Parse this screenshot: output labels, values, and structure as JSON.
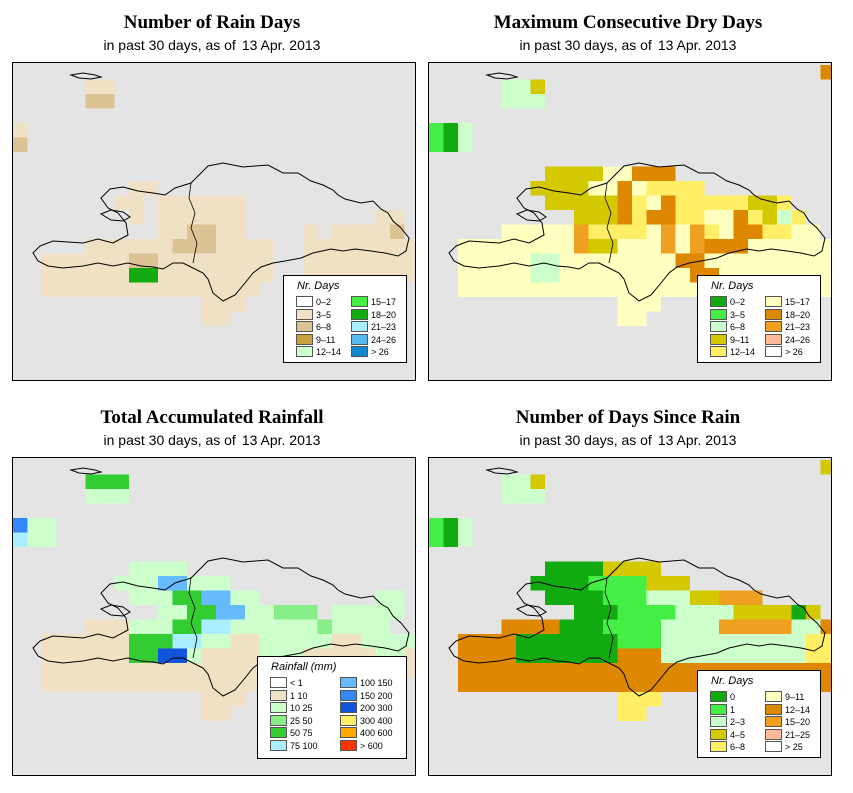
{
  "panels": [
    {
      "id": "rain-days",
      "title": "Number of Rain Days",
      "subtitle": "in past 30 days, as of",
      "date": "13 Apr. 2013",
      "legend": {
        "title": "Nr. Days",
        "items": [
          {
            "label": "0–2",
            "color": "#ffffff"
          },
          {
            "label": "3–5",
            "color": "#f0e0c4"
          },
          {
            "label": "6–8",
            "color": "#dcc394"
          },
          {
            "label": "9–11",
            "color": "#c9a040"
          },
          {
            "label": "12–14",
            "color": "#ccffcc"
          },
          {
            "label": "15–17",
            "color": "#44ee44"
          },
          {
            "label": "18–20",
            "color": "#11aa11"
          },
          {
            "label": "21–23",
            "color": "#aaeeff"
          },
          {
            "label": "24–26",
            "color": "#55bbee"
          },
          {
            "label": "> 26",
            "color": "#1188cc"
          }
        ]
      }
    },
    {
      "id": "dry-days",
      "title": "Maximum Consecutive Dry Days",
      "subtitle": "in past 30 days, as of",
      "date": "13 Apr. 2013",
      "legend": {
        "title": "Nr. Days",
        "items": [
          {
            "label": "0–2",
            "color": "#11aa11"
          },
          {
            "label": "3–5",
            "color": "#44ee44"
          },
          {
            "label": "6–8",
            "color": "#ccffcc"
          },
          {
            "label": "9–11",
            "color": "#d4c800"
          },
          {
            "label": "12–14",
            "color": "#ffee66"
          },
          {
            "label": "15–17",
            "color": "#ffffc0"
          },
          {
            "label": "18–20",
            "color": "#dd8800"
          },
          {
            "label": "21–23",
            "color": "#f0a020"
          },
          {
            "label": "24–26",
            "color": "#ffbb99"
          },
          {
            "label": "> 26",
            "color": "#ffffff"
          }
        ]
      }
    },
    {
      "id": "rainfall",
      "title": "Total Accumulated Rainfall",
      "subtitle": "in past 30 days, as of",
      "date": "13 Apr. 2013",
      "legend": {
        "title": "Rainfall (mm)",
        "items": [
          {
            "label": "< 1",
            "color": "#ffffff"
          },
          {
            "label": "1   10",
            "color": "#f0e0c4"
          },
          {
            "label": "10   25",
            "color": "#ccffcc"
          },
          {
            "label": "25   50",
            "color": "#88ee88"
          },
          {
            "label": "50   75",
            "color": "#33cc33"
          },
          {
            "label": "75  100",
            "color": "#aaeeff"
          },
          {
            "label": "100  150",
            "color": "#66bbff"
          },
          {
            "label": "150  200",
            "color": "#3388ff"
          },
          {
            "label": "200  300",
            "color": "#1155dd"
          },
          {
            "label": "300  400",
            "color": "#ffee66"
          },
          {
            "label": "400  600",
            "color": "#ffaa00"
          },
          {
            "label": "> 600",
            "color": "#ff3300"
          }
        ]
      }
    },
    {
      "id": "since-rain",
      "title": "Number of Days Since Rain",
      "subtitle": "in past 30 days, as of",
      "date": "13 Apr. 2013",
      "legend": {
        "title": "Nr. Days",
        "items": [
          {
            "label": "0",
            "color": "#11aa11"
          },
          {
            "label": "1",
            "color": "#44ee44"
          },
          {
            "label": "2–3",
            "color": "#ccffcc"
          },
          {
            "label": "4–5",
            "color": "#d4c800"
          },
          {
            "label": "6–8",
            "color": "#ffee66"
          },
          {
            "label": "9–11",
            "color": "#ffffc0"
          },
          {
            "label": "12–14",
            "color": "#dd8800"
          },
          {
            "label": "15–20",
            "color": "#f0a020"
          },
          {
            "label": "21–25",
            "color": "#ffbb99"
          },
          {
            "label": "> 25",
            "color": "#ffffff"
          }
        ]
      }
    }
  ],
  "grids": [
    [
      "..............................",
      ".....LL.......................",
      ".....MM.......................",
      "..............................",
      "L.............................",
      "M.............................",
      "..............................",
      "..............................",
      "........LL....................",
      ".......LL.LLLLLL..............",
      "........L.LLLLLL.........LL...",
      "..........LLMMLL....L.LLLLM...",
      ".....LLLLLLMMMLLLL..LLLLLLLL..",
      "..LLLLLLMMLLLLLLLL..LLLLLLLLL.",
      "..LLLLLLGGLLLLLLLL..LLLLLLLLL.",
      "..LLLLLLLLLLLLLLL............M",
      ".............LLL..............",
      ".............LL..............."
    ],
    [
      "...........................R..",
      ".....SSP......................",
      ".....SSS......................",
      "..............................",
      "BGS...........................",
      "BGS...........................",
      "..............................",
      "........PPPPTTRRR.............",
      ".......PPPPTTRTYYYY...........",
      "........PPPPPRYTRYYYYYPPY.....",
      "..........PPPRYRRYYTTRYPSY....",
      ".....UUUUUOYYYYTOUOYTRRYYUU...",
      "..UUUUUUUUOPPTTUOUORRRUUUUUU..",
      "..UUUUUSSUUTTTTUURRTTUUUUUUU..",
      "..UUUUUSSUUTTTTUUURRUUUUUUUUU.",
      "..UUUUUUUUUUUUUUUUUUUUUUUUUUUU",
      ".............UUU..............",
      ".............UU..............."
    ],
    [
      "..............................",
      ".....QQQ......................",
      ".....NNN......................",
      "..............................",
      "BNN...........................",
      "ANN...........................",
      "..............................",
      "........NNNN..................",
      ".......NNNFFNNN...............",
      "........NNNGGFFNN........NN...",
      "..........NNGGFFNNRRR.NNNNN...",
      ".....LLLNNNGGEENNNNNNRNNNN....",
      "..LLLLLLGGGEENNLLNNNNNLLNNNN..",
      "..LLLLLLGGCCNLLLLNNNLLLLLNNLL.",
      "..LLLLLLLLLLLLLLLLLLLLLLLLLLL.",
      "..LLLLLLLLLLLLLLLLL...........",
      ".............LLL..............",
      ".............LL..............."
    ],
    [
      "...........................R..",
      ".....SSP......................",
      ".....SSS......................",
      "..............................",
      "BGS...........................",
      "BGS...........................",
      "..............................",
      "........GGGGRRRR..............",
      ".......GGGGHHHHRRR............",
      "........GGGGHHHSSSRROOO.......",
      "..........GGGHHHHSSSSRRRRGP...",
      ".....DDDDGGGHHHHSSSSOOOOOSSD..",
      "..DDDDGGGGGGGHHHSSSSSSSSSSUUU.",
      "..DDDDGGGGGGGDDDSSSSSSSSSSUUUD",
      "..DDDDDDDDDDDDDDDDDDDDDDDDDDDD",
      "..DDDDDDDDDDDDDDDDDDDDDDDDDD..",
      ".............UUU..............",
      ".............UU..............."
    ]
  ],
  "palettes": [
    {
      ".": "#e4e4e4",
      "W": "#ffffff",
      "L": "#f0e0c4",
      "M": "#dcc394",
      "D": "#c9a040",
      "G": "#11aa11",
      "H": "#44ee44",
      "S": "#ccffcc"
    },
    {
      ".": "#e4e4e4",
      "G": "#11aa11",
      "B": "#44ee44",
      "S": "#ccffcc",
      "P": "#d4c800",
      "Y": "#ffee66",
      "T": "#ffffc0",
      "R": "#dd8800",
      "O": "#f0a020",
      "U": "#ffffc0"
    },
    {
      ".": "#e4e4e4",
      "W": "#ffffff",
      "L": "#f0e0c4",
      "N": "#ccffcc",
      "R": "#88ee88",
      "G": "#33cc33",
      "Q": "#33cc33",
      "E": "#aaeeff",
      "F": "#66bbff",
      "B": "#3388ff",
      "C": "#1155dd",
      "A": "#aaeeff"
    },
    {
      ".": "#e4e4e4",
      "R": "#d4c800",
      "S": "#ccffcc",
      "P": "#d4c800",
      "B": "#44ee44",
      "G": "#11aa11",
      "H": "#44ee44",
      "O": "#f0a020",
      "D": "#dd8800",
      "U": "#ffee66"
    }
  ]
}
